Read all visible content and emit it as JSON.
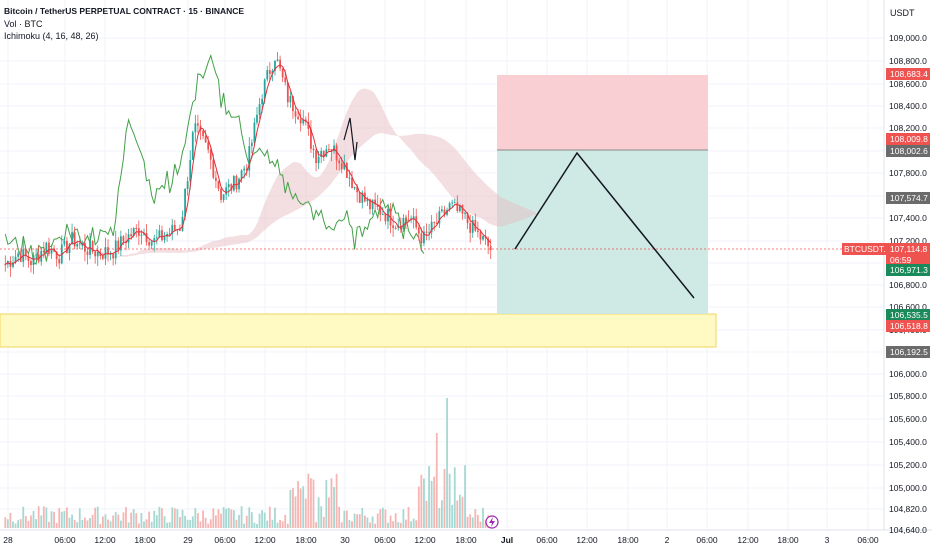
{
  "header": {
    "title": "Bitcoin / TetherUS PERPETUAL CONTRACT · 15 · BINANCE",
    "volume_label": "Vol · BTC",
    "indicator_label": "Ichimoku (4, 16, 48, 26)",
    "currency": "USDT"
  },
  "price_axis": {
    "ticks": [
      "109,000.0",
      "108,800.0",
      "108,600.0",
      "108,400.0",
      "108,200.0",
      "108,000.0",
      "107,800.0",
      "107,600.0",
      "107,400.0",
      "107,200.0",
      "107,000.0",
      "106,800.0",
      "106,600.0",
      "106,400.0",
      "106,200.0",
      "106,000.0",
      "105,800.0",
      "105,600.0",
      "105,400.0",
      "105,200.0",
      "105,000.0",
      "104,820.0",
      "104,640.0"
    ]
  },
  "time_axis": {
    "ticks": [
      "28",
      "06:00",
      "12:00",
      "18:00",
      "29",
      "06:00",
      "12:00",
      "18:00",
      "30",
      "06:00",
      "12:00",
      "18:00",
      "Jul",
      "06:00",
      "12:00",
      "18:00",
      "2",
      "06:00",
      "12:00",
      "18:00",
      "3",
      "06:00"
    ]
  },
  "price_tags": {
    "stop_loss": "108,683.4",
    "entry_top": "108,009.8",
    "entry_level": "108,002.6",
    "marker_gray": "107,574.7",
    "symbol": "BTCUSDT.P",
    "current_price": "107,114.8",
    "countdown": "06:59",
    "ichimoku_value": "106,971.3",
    "take_profit": "106,535.5",
    "support_level": "106,518.8",
    "support_low": "106,192.5"
  },
  "colors": {
    "up": "#26a69a",
    "down": "#ef5350",
    "stop_zone": "#f9cfd3",
    "profit_zone": "#cfe9e4",
    "support_zone": "#fff9c4",
    "support_border": "#f0d65a",
    "tenkan": "#e0303a",
    "chikou": "#43a047",
    "kumo": "#e8c0c4",
    "price_line": "#ef5350"
  },
  "chart_data": {
    "type": "candlestick",
    "symbol": "BTCUSDT.P",
    "interval": "15",
    "exchange": "BINANCE",
    "y_axis_range": [
      104640,
      109000
    ],
    "last_price": 107114.8,
    "stop_loss": 108683.4,
    "entry": 108002.6,
    "take_profit": 106535.5,
    "support_zone": [
      106192.5,
      106518.8
    ],
    "approx_price_path": [
      106980,
      107080,
      107000,
      107150,
      107060,
      107200,
      107120,
      107080,
      107100,
      107220,
      107300,
      107180,
      107250,
      107320,
      108200,
      108000,
      107600,
      107700,
      107900,
      108500,
      108850,
      108450,
      108300,
      107950,
      108050,
      107900,
      107650,
      107500,
      107450,
      107350,
      107400,
      107200,
      107350,
      107500,
      107400,
      107250,
      107114.8
    ]
  }
}
